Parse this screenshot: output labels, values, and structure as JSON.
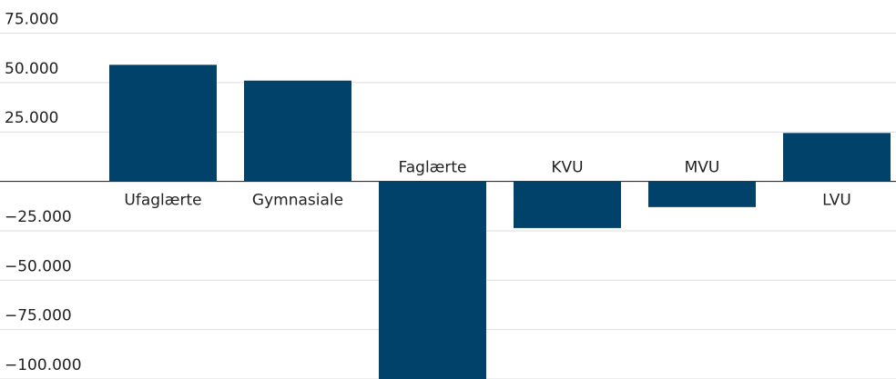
{
  "chart_data": {
    "type": "bar",
    "categories": [
      "Ufaglærte",
      "Gymnasiale",
      "Faglærte",
      "KVU",
      "MVU",
      "LVU"
    ],
    "values": [
      59000,
      51000,
      -100000,
      -23600,
      -13000,
      24500
    ],
    "color": "#00426a",
    "ylim": [
      -100000,
      91800
    ],
    "yticks": [
      {
        "value": -100000,
        "label": "−100.000"
      },
      {
        "value": -75000,
        "label": "−75.000"
      },
      {
        "value": -50000,
        "label": "−50.000"
      },
      {
        "value": -25000,
        "label": "−25.000"
      },
      0,
      {
        "value": 25000,
        "label": "25.000"
      },
      {
        "value": 50000,
        "label": "50.000"
      },
      {
        "value": 75000,
        "label": "75.000"
      }
    ],
    "grid": true
  }
}
